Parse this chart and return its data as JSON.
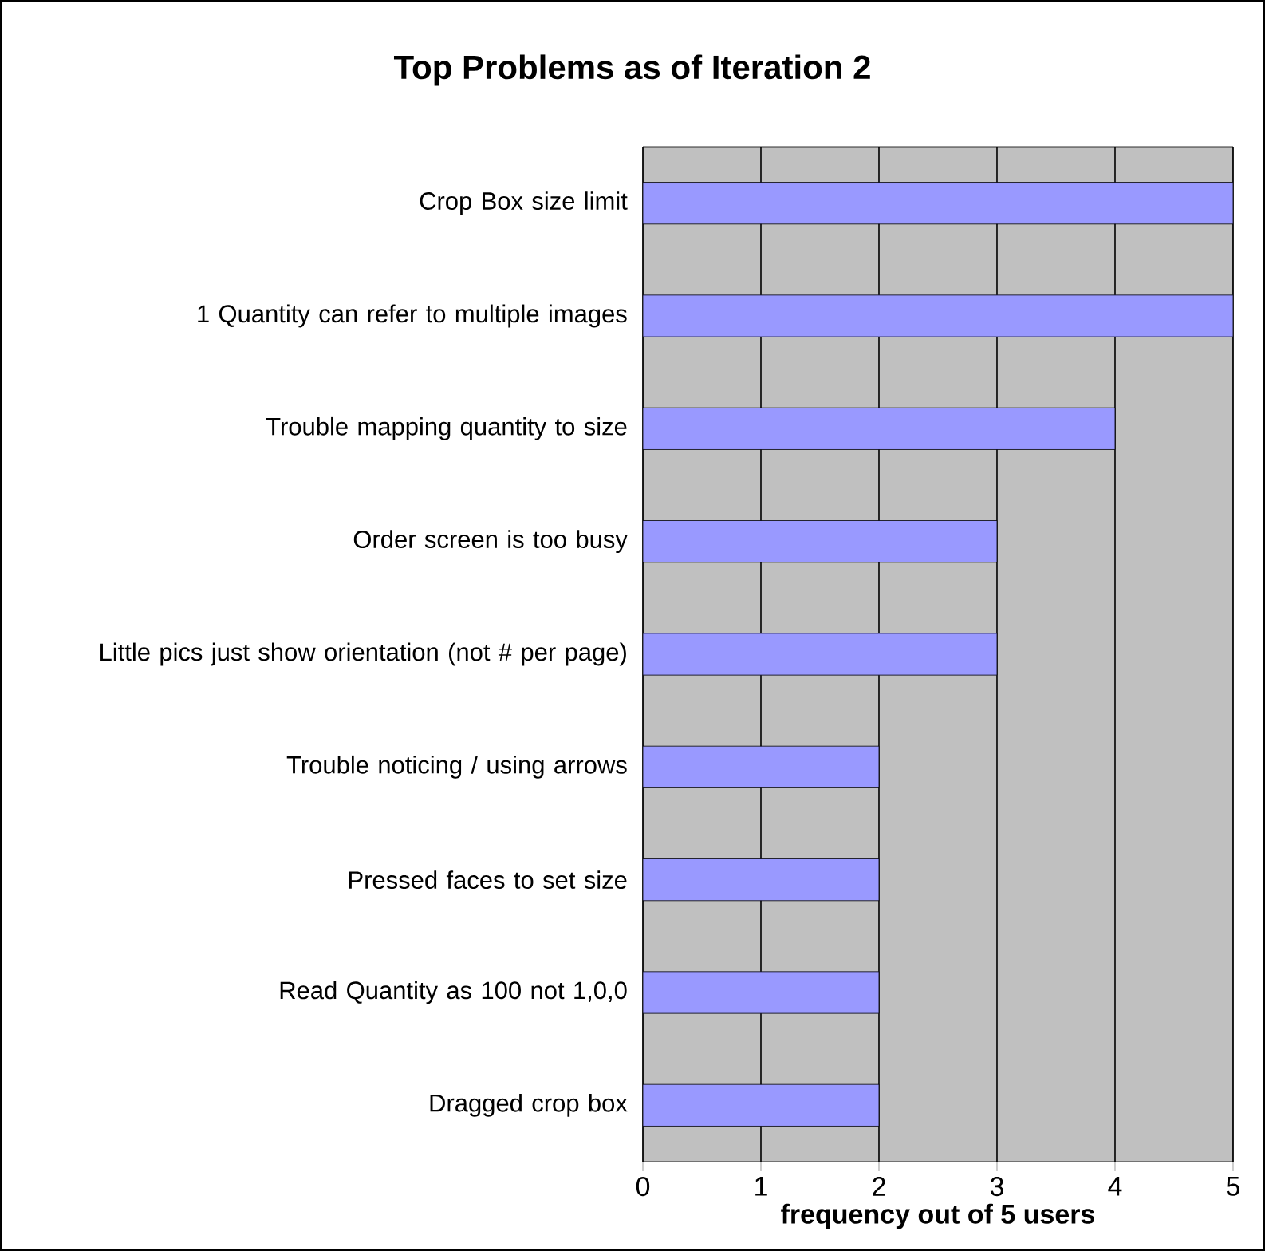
{
  "chart_data": {
    "type": "bar",
    "orientation": "horizontal",
    "title": "Top Problems as of Iteration 2",
    "xlabel": "frequency out of 5 users",
    "categories": [
      "Crop Box size limit",
      "1 Quantity can refer to multiple images",
      "Trouble mapping quantity to size",
      "Order screen is too busy",
      "Little pics just show orientation (not # per page)",
      "Trouble noticing / using arrows",
      "Pressed faces to set size",
      "Read Quantity as 100 not 1,0,0",
      "Dragged crop box"
    ],
    "values": [
      5,
      5,
      4,
      3,
      3,
      2,
      2,
      2,
      2
    ],
    "color": "#9999ff",
    "xlim": [
      0,
      5
    ],
    "xticks": [
      0,
      1,
      2,
      3,
      4,
      5
    ],
    "grid": "x"
  }
}
